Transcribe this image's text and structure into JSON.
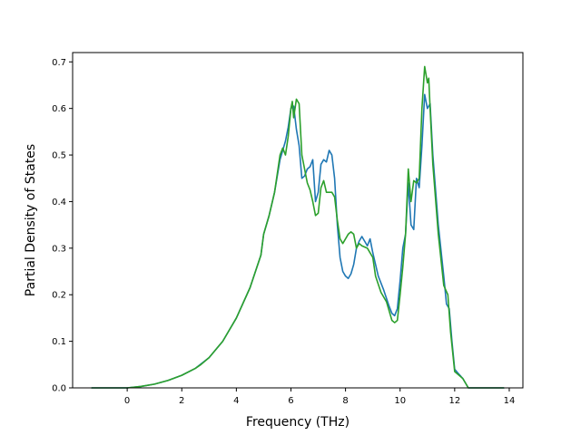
{
  "chart_data": {
    "type": "line",
    "title": "",
    "xlabel": "Frequency (THz)",
    "ylabel": "Partial Density of States",
    "xlim": [
      -2.0,
      14.5
    ],
    "ylim": [
      0.0,
      0.72
    ],
    "xticks": [
      0,
      2,
      4,
      6,
      8,
      10,
      12,
      14
    ],
    "yticks": [
      0.0,
      0.1,
      0.2,
      0.3,
      0.4,
      0.5,
      0.6,
      0.7
    ],
    "grid": false,
    "legend": "none",
    "series": [
      {
        "color": "#1f77b4",
        "points": [
          [
            -1.3,
            0.0
          ],
          [
            0.0,
            0.0
          ],
          [
            0.5,
            0.003
          ],
          [
            1.0,
            0.008
          ],
          [
            1.5,
            0.016
          ],
          [
            2.0,
            0.027
          ],
          [
            2.5,
            0.042
          ],
          [
            3.0,
            0.065
          ],
          [
            3.5,
            0.1
          ],
          [
            4.0,
            0.15
          ],
          [
            4.5,
            0.215
          ],
          [
            4.9,
            0.285
          ],
          [
            5.0,
            0.33
          ],
          [
            5.2,
            0.37
          ],
          [
            5.4,
            0.42
          ],
          [
            5.6,
            0.49
          ],
          [
            5.7,
            0.51
          ],
          [
            5.8,
            0.53
          ],
          [
            5.9,
            0.56
          ],
          [
            6.0,
            0.6
          ],
          [
            6.1,
            0.605
          ],
          [
            6.2,
            0.555
          ],
          [
            6.3,
            0.52
          ],
          [
            6.4,
            0.45
          ],
          [
            6.5,
            0.455
          ],
          [
            6.6,
            0.47
          ],
          [
            6.7,
            0.475
          ],
          [
            6.8,
            0.49
          ],
          [
            6.9,
            0.4
          ],
          [
            7.0,
            0.42
          ],
          [
            7.1,
            0.48
          ],
          [
            7.2,
            0.49
          ],
          [
            7.3,
            0.485
          ],
          [
            7.4,
            0.51
          ],
          [
            7.5,
            0.5
          ],
          [
            7.6,
            0.45
          ],
          [
            7.7,
            0.35
          ],
          [
            7.8,
            0.28
          ],
          [
            7.9,
            0.25
          ],
          [
            8.0,
            0.24
          ],
          [
            8.1,
            0.235
          ],
          [
            8.2,
            0.245
          ],
          [
            8.3,
            0.265
          ],
          [
            8.4,
            0.3
          ],
          [
            8.5,
            0.315
          ],
          [
            8.6,
            0.325
          ],
          [
            8.7,
            0.315
          ],
          [
            8.8,
            0.305
          ],
          [
            8.9,
            0.32
          ],
          [
            9.0,
            0.29
          ],
          [
            9.2,
            0.24
          ],
          [
            9.4,
            0.21
          ],
          [
            9.6,
            0.175
          ],
          [
            9.7,
            0.16
          ],
          [
            9.8,
            0.155
          ],
          [
            9.9,
            0.17
          ],
          [
            10.0,
            0.23
          ],
          [
            10.1,
            0.3
          ],
          [
            10.2,
            0.33
          ],
          [
            10.3,
            0.44
          ],
          [
            10.4,
            0.35
          ],
          [
            10.5,
            0.34
          ],
          [
            10.6,
            0.45
          ],
          [
            10.7,
            0.43
          ],
          [
            10.8,
            0.52
          ],
          [
            10.9,
            0.63
          ],
          [
            11.0,
            0.6
          ],
          [
            11.1,
            0.61
          ],
          [
            11.2,
            0.5
          ],
          [
            11.4,
            0.35
          ],
          [
            11.6,
            0.24
          ],
          [
            11.7,
            0.18
          ],
          [
            11.8,
            0.17
          ],
          [
            11.9,
            0.1
          ],
          [
            12.0,
            0.04
          ],
          [
            12.1,
            0.033
          ],
          [
            12.3,
            0.02
          ],
          [
            12.5,
            0.0
          ],
          [
            13.8,
            0.0
          ]
        ]
      },
      {
        "color": "#2ca02c",
        "points": [
          [
            -1.3,
            0.0
          ],
          [
            0.0,
            0.0
          ],
          [
            0.5,
            0.003
          ],
          [
            1.0,
            0.008
          ],
          [
            1.5,
            0.016
          ],
          [
            2.0,
            0.027
          ],
          [
            2.5,
            0.042
          ],
          [
            2.7,
            0.05
          ],
          [
            3.0,
            0.065
          ],
          [
            3.5,
            0.1
          ],
          [
            4.0,
            0.15
          ],
          [
            4.5,
            0.215
          ],
          [
            4.9,
            0.285
          ],
          [
            5.0,
            0.33
          ],
          [
            5.2,
            0.37
          ],
          [
            5.4,
            0.42
          ],
          [
            5.6,
            0.5
          ],
          [
            5.7,
            0.515
          ],
          [
            5.8,
            0.5
          ],
          [
            5.9,
            0.54
          ],
          [
            6.0,
            0.6
          ],
          [
            6.05,
            0.615
          ],
          [
            6.1,
            0.58
          ],
          [
            6.2,
            0.62
          ],
          [
            6.3,
            0.61
          ],
          [
            6.4,
            0.5
          ],
          [
            6.5,
            0.47
          ],
          [
            6.6,
            0.44
          ],
          [
            6.7,
            0.425
          ],
          [
            6.8,
            0.4
          ],
          [
            6.9,
            0.37
          ],
          [
            7.0,
            0.375
          ],
          [
            7.1,
            0.43
          ],
          [
            7.2,
            0.445
          ],
          [
            7.3,
            0.42
          ],
          [
            7.4,
            0.42
          ],
          [
            7.5,
            0.42
          ],
          [
            7.6,
            0.41
          ],
          [
            7.7,
            0.36
          ],
          [
            7.8,
            0.32
          ],
          [
            7.9,
            0.31
          ],
          [
            8.0,
            0.32
          ],
          [
            8.1,
            0.33
          ],
          [
            8.2,
            0.335
          ],
          [
            8.3,
            0.33
          ],
          [
            8.4,
            0.3
          ],
          [
            8.5,
            0.31
          ],
          [
            8.6,
            0.305
          ],
          [
            8.8,
            0.3
          ],
          [
            9.0,
            0.28
          ],
          [
            9.1,
            0.24
          ],
          [
            9.3,
            0.205
          ],
          [
            9.5,
            0.185
          ],
          [
            9.6,
            0.165
          ],
          [
            9.7,
            0.145
          ],
          [
            9.8,
            0.14
          ],
          [
            9.9,
            0.145
          ],
          [
            10.0,
            0.2
          ],
          [
            10.1,
            0.26
          ],
          [
            10.2,
            0.33
          ],
          [
            10.3,
            0.47
          ],
          [
            10.4,
            0.4
          ],
          [
            10.5,
            0.445
          ],
          [
            10.6,
            0.44
          ],
          [
            10.7,
            0.45
          ],
          [
            10.8,
            0.6
          ],
          [
            10.9,
            0.69
          ],
          [
            11.0,
            0.655
          ],
          [
            11.05,
            0.665
          ],
          [
            11.1,
            0.6
          ],
          [
            11.2,
            0.48
          ],
          [
            11.4,
            0.33
          ],
          [
            11.6,
            0.22
          ],
          [
            11.75,
            0.2
          ],
          [
            11.85,
            0.12
          ],
          [
            12.0,
            0.035
          ],
          [
            12.3,
            0.02
          ],
          [
            12.5,
            0.0
          ],
          [
            13.8,
            0.0
          ]
        ]
      }
    ]
  }
}
